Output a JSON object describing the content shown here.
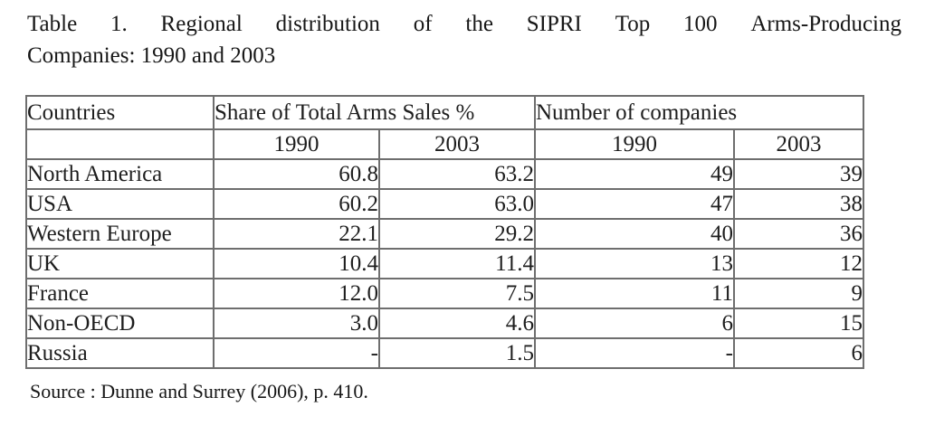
{
  "title": {
    "line1": "Table 1. Regional distribution of the SIPRI Top 100 Arms-Producing",
    "line2": "Companies: 1990 and 2003"
  },
  "table": {
    "header": {
      "countries_label": "Countries",
      "share_group_label": "Share of Total Arms Sales %",
      "companies_group_label": "Number of companies",
      "share_year_1": "1990",
      "share_year_2": "2003",
      "companies_year_1": "1990",
      "companies_year_2": "2003"
    },
    "rows": [
      {
        "country": "North America",
        "share_1990": "60.8",
        "share_2003": "63.2",
        "num_1990": "49",
        "num_2003": "39"
      },
      {
        "country": "USA",
        "share_1990": "60.2",
        "share_2003": "63.0",
        "num_1990": "47",
        "num_2003": "38"
      },
      {
        "country": "Western Europe",
        "share_1990": "22.1",
        "share_2003": "29.2",
        "num_1990": "40",
        "num_2003": "36"
      },
      {
        "country": "UK",
        "share_1990": "10.4",
        "share_2003": "11.4",
        "num_1990": "13",
        "num_2003": "12"
      },
      {
        "country": "France",
        "share_1990": "12.0",
        "share_2003": "7.5",
        "num_1990": "11",
        "num_2003": "9"
      },
      {
        "country": "Non-OECD",
        "share_1990": "3.0",
        "share_2003": "4.6",
        "num_1990": "6",
        "num_2003": "15"
      },
      {
        "country": "Russia",
        "share_1990": "-",
        "share_2003": "1.5",
        "num_1990": "-",
        "num_2003": "6"
      }
    ]
  },
  "source_note": "Source : Dunne and Surrey (2006), p. 410.",
  "colors": {
    "text": "#1e1e1e",
    "border_inner": "#6e6e6e",
    "border_outer": "#454545",
    "background": "#ffffff"
  }
}
